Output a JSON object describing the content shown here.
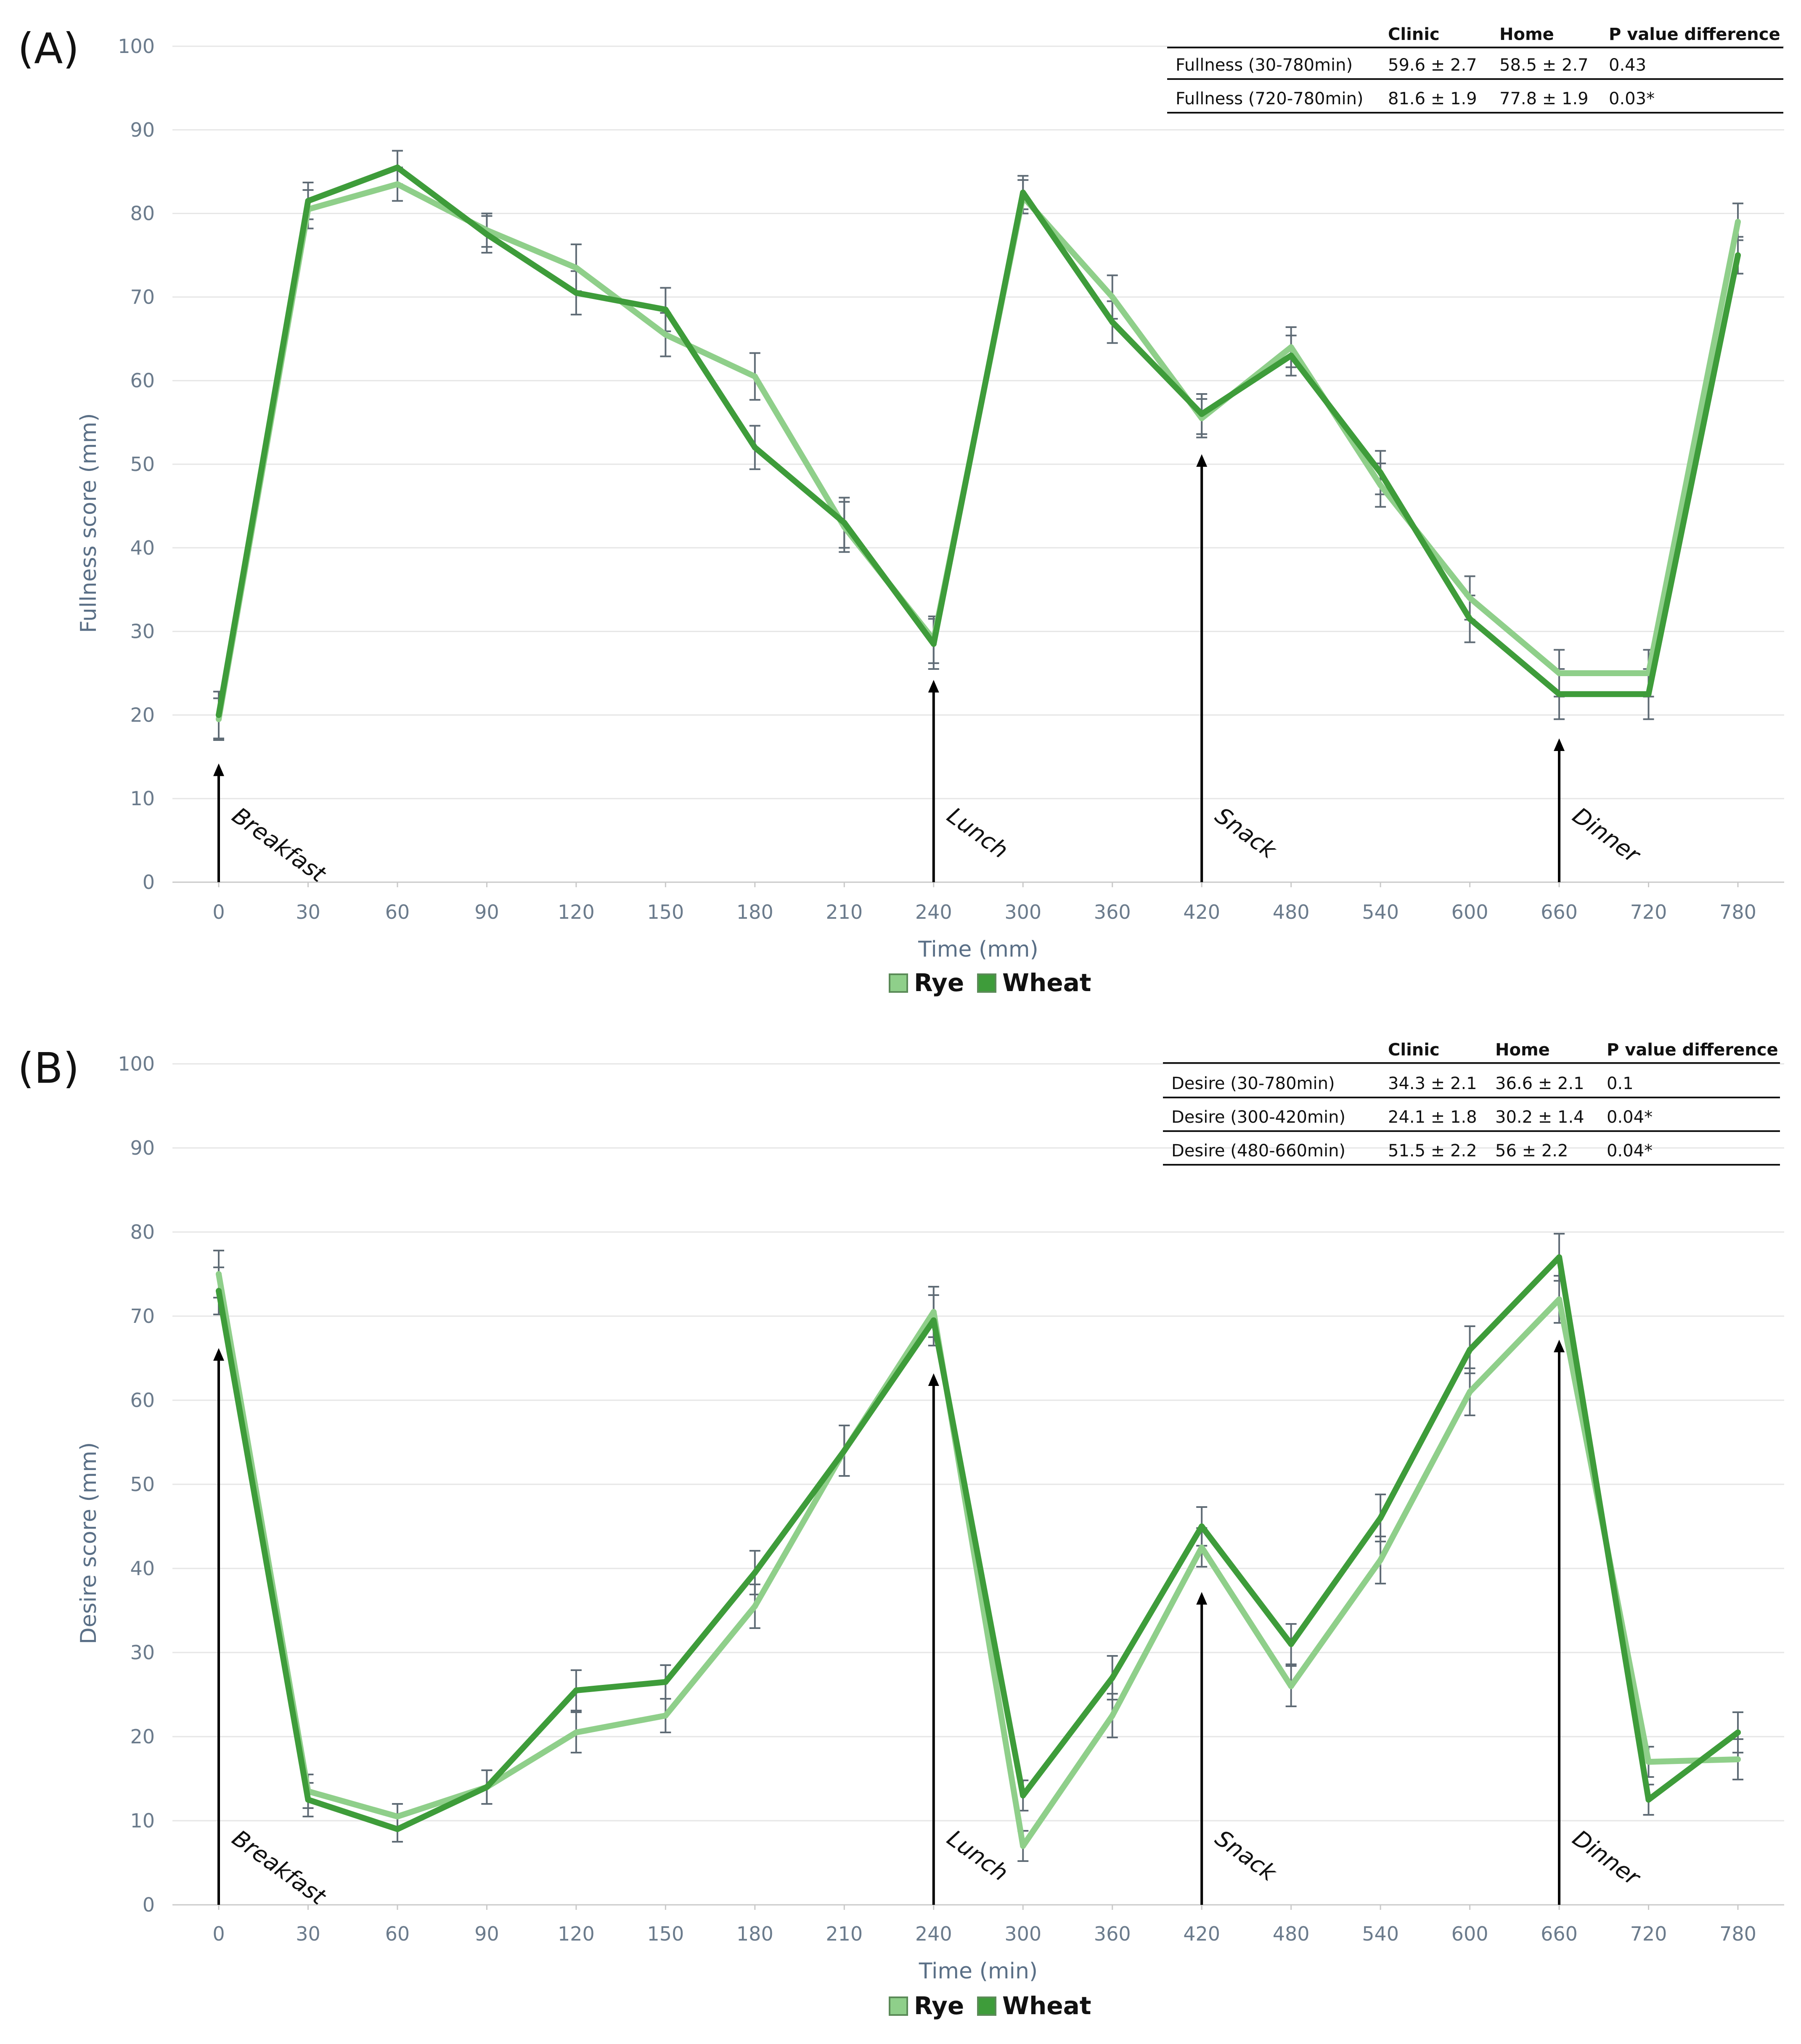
{
  "chart_data": [
    {
      "panel": "(A)",
      "type": "line",
      "categories": [
        "0",
        "30",
        "60",
        "90",
        "120",
        "150",
        "180",
        "210",
        "240",
        "300",
        "360",
        "420",
        "480",
        "540",
        "600",
        "660",
        "720",
        "780"
      ],
      "series": [
        {
          "name": "Rye",
          "color": "#8fcf8a",
          "values": [
            19.5,
            80.5,
            83.5,
            78,
            73.5,
            65.5,
            60.5,
            42.5,
            29,
            82,
            70,
            55.5,
            64,
            47.5,
            34,
            25,
            25,
            79
          ],
          "errors": [
            2.5,
            2.3,
            2,
            2,
            2.8,
            2.6,
            2.8,
            3,
            2.8,
            2,
            2.6,
            2.3,
            2.4,
            2.6,
            2.6,
            2.8,
            2.8,
            2.2
          ]
        },
        {
          "name": "Wheat",
          "color": "#3e9c3a",
          "values": [
            20,
            81.5,
            85.5,
            77.5,
            70.5,
            68.5,
            52,
            43,
            28.5,
            82.5,
            67,
            56,
            63,
            49,
            31.5,
            22.5,
            22.5,
            75
          ],
          "errors": [
            2.8,
            2.2,
            2,
            2.2,
            2.6,
            2.6,
            2.6,
            3,
            3,
            2,
            2.5,
            2.4,
            2.4,
            2.6,
            2.8,
            3,
            3,
            2.2
          ]
        }
      ],
      "xlabel": "Time (mm)",
      "ylabel": "Fullness score (mm)",
      "ylim": [
        0,
        100
      ],
      "yticks": [
        "0",
        "10",
        "20",
        "30",
        "40",
        "50",
        "60",
        "70",
        "80",
        "90",
        "100"
      ],
      "legend": [
        "Rye",
        "Wheat"
      ],
      "annotations": [
        {
          "label": "Breakfast",
          "at": "0",
          "tip": 14
        },
        {
          "label": "Lunch",
          "at": "240",
          "tip": 24
        },
        {
          "label": "Snack",
          "at": "420",
          "tip": 51
        },
        {
          "label": "Dinner",
          "at": "660",
          "tip": 17
        }
      ],
      "table": {
        "headers": [
          "",
          "Clinic",
          "Home",
          "P value difference"
        ],
        "rows": [
          [
            "Fullness (30-780min)",
            "59.6 ± 2.7",
            "58.5 ± 2.7",
            "0.43"
          ],
          [
            "Fullness (720-780min)",
            "81.6 ± 1.9",
            "77.8 ± 1.9",
            "0.03*"
          ]
        ]
      }
    },
    {
      "panel": "(B)",
      "type": "line",
      "categories": [
        "0",
        "30",
        "60",
        "90",
        "120",
        "150",
        "180",
        "210",
        "240",
        "300",
        "360",
        "420",
        "480",
        "540",
        "600",
        "660",
        "720",
        "780"
      ],
      "series": [
        {
          "name": "Rye",
          "color": "#8fcf8a",
          "values": [
            75,
            13.5,
            10.5,
            14,
            20.5,
            22.5,
            35.5,
            54,
            70.5,
            7,
            22.5,
            42.5,
            26,
            41,
            61,
            72,
            17,
            17.3
          ],
          "errors": [
            2.8,
            2,
            1.5,
            2,
            2.4,
            2,
            2.6,
            3,
            3,
            1.8,
            2.6,
            2.3,
            2.4,
            2.8,
            2.8,
            2.8,
            1.8,
            2.4
          ]
        },
        {
          "name": "Wheat",
          "color": "#3e9c3a",
          "values": [
            73,
            12.5,
            9,
            14,
            25.5,
            26.5,
            39.5,
            54,
            69.5,
            13,
            27,
            45,
            31,
            46,
            66,
            77,
            12.5,
            20.5
          ],
          "errors": [
            2.8,
            2,
            1.5,
            2,
            2.4,
            2,
            2.6,
            3,
            3,
            1.8,
            2.6,
            2.3,
            2.4,
            2.8,
            2.8,
            2.8,
            1.8,
            2.4
          ]
        }
      ],
      "xlabel": "Time (min)",
      "ylabel": "Desire score (mm)",
      "ylim": [
        0,
        100
      ],
      "yticks": [
        "0",
        "10",
        "20",
        "30",
        "40",
        "50",
        "60",
        "70",
        "80",
        "90",
        "100"
      ],
      "legend": [
        "Rye",
        "Wheat"
      ],
      "annotations": [
        {
          "label": "Breakfast",
          "at": "0",
          "tip": 66
        },
        {
          "label": "Lunch",
          "at": "240",
          "tip": 63
        },
        {
          "label": "Snack",
          "at": "420",
          "tip": 37
        },
        {
          "label": "Dinner",
          "at": "660",
          "tip": 67
        }
      ],
      "table": {
        "headers": [
          "",
          "Clinic",
          "Home",
          "P value difference"
        ],
        "rows": [
          [
            "Desire (30-780min)",
            "34.3 ± 2.1",
            "36.6 ± 2.1",
            "0.1"
          ],
          [
            "Desire (300-420min)",
            "24.1 ± 1.8",
            "30.2 ± 1.4",
            "0.04*"
          ],
          [
            "Desire (480-660min)",
            "51.5 ± 2.2",
            "56 ± 2.2",
            "0.04*"
          ]
        ]
      }
    }
  ]
}
